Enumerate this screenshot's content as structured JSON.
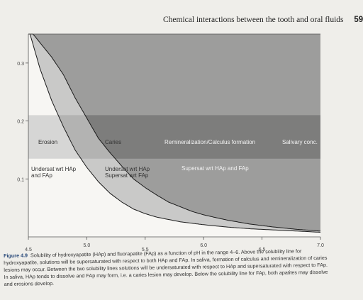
{
  "header": {
    "title": "Chemical interactions between the tooth and oral fluids",
    "page_number": "59"
  },
  "chart_data": {
    "type": "area",
    "title": "",
    "xlabel": "",
    "ylabel": "",
    "xlim": [
      4.5,
      7.0
    ],
    "ylim": [
      0.0,
      0.35
    ],
    "x_ticks_lower": [
      "4.5",
      "5.5",
      "6.5"
    ],
    "x_ticks_upper": [
      "5.0",
      "6.0",
      "7.0"
    ],
    "y_ticks": [
      "0.1",
      "0.2",
      "0.3"
    ],
    "series": [
      {
        "name": "HAp",
        "x": [
          4.5,
          4.7,
          4.8,
          4.9,
          5.0,
          5.1,
          5.2,
          5.3,
          5.4,
          5.5,
          5.6,
          5.7,
          5.8,
          5.9,
          6.0,
          6.2,
          6.4,
          6.6,
          6.8,
          7.0
        ],
        "y": [
          0.36,
          0.31,
          0.28,
          0.24,
          0.205,
          0.17,
          0.145,
          0.122,
          0.1,
          0.085,
          0.072,
          0.06,
          0.052,
          0.044,
          0.038,
          0.029,
          0.022,
          0.017,
          0.013,
          0.01
        ]
      },
      {
        "name": "FAp",
        "x": [
          4.5,
          4.6,
          4.7,
          4.8,
          4.9,
          5.0,
          5.1,
          5.2,
          5.3,
          5.4,
          5.5,
          5.6,
          5.8,
          6.0,
          6.2,
          6.4,
          6.6,
          6.8,
          7.0
        ],
        "y": [
          0.36,
          0.29,
          0.235,
          0.19,
          0.15,
          0.12,
          0.095,
          0.075,
          0.06,
          0.048,
          0.04,
          0.034,
          0.026,
          0.021,
          0.017,
          0.014,
          0.012,
          0.01,
          0.008
        ]
      }
    ],
    "band": {
      "ymin": 0.135,
      "ymax": 0.21
    },
    "labels": {
      "erosion": "Erosion",
      "caries": "Caries",
      "remin": "Remineralization/Calculus formation",
      "salivary": "Salivary conc.",
      "undersat_both_1": "Undersat wrt HAp",
      "undersat_both_2": "and FAp",
      "undersat_hap": "Undersat wrt HAp",
      "supersat_fap": "Supersat wrt FAp",
      "supersat_both": "Supersat wrt HAp and FAp"
    }
  },
  "caption": {
    "label": "Figure 4.9",
    "text": "Solubility of hydroxyapatite (HAp) and fluorapatite (FAp) as a function of pH in the range 4–6. Above the solubility line for hydroxyapatite, solutions will be supersaturated with respect to both HAp and FAp. In saliva, formation of calculus and remineralization of caries lesions may occur. Between the two solubility lines solutions will be undersaturated with respect to HAp and supersaturated with respect to FAp. In saliva, HAp tends to dissolve and FAp may form, i.e. a caries lesion may develop. Below the solubility line for FAp, both apatites may dissolve and erosions develop."
  },
  "colors": {
    "light_region": "#c9c9c8",
    "dark_region": "#9d9d9c",
    "band_light": "#b3b3b2",
    "band_mid": "#a6a6a5",
    "band_dark": "#7d7d7c",
    "fig_label": "#2a4a7a"
  }
}
